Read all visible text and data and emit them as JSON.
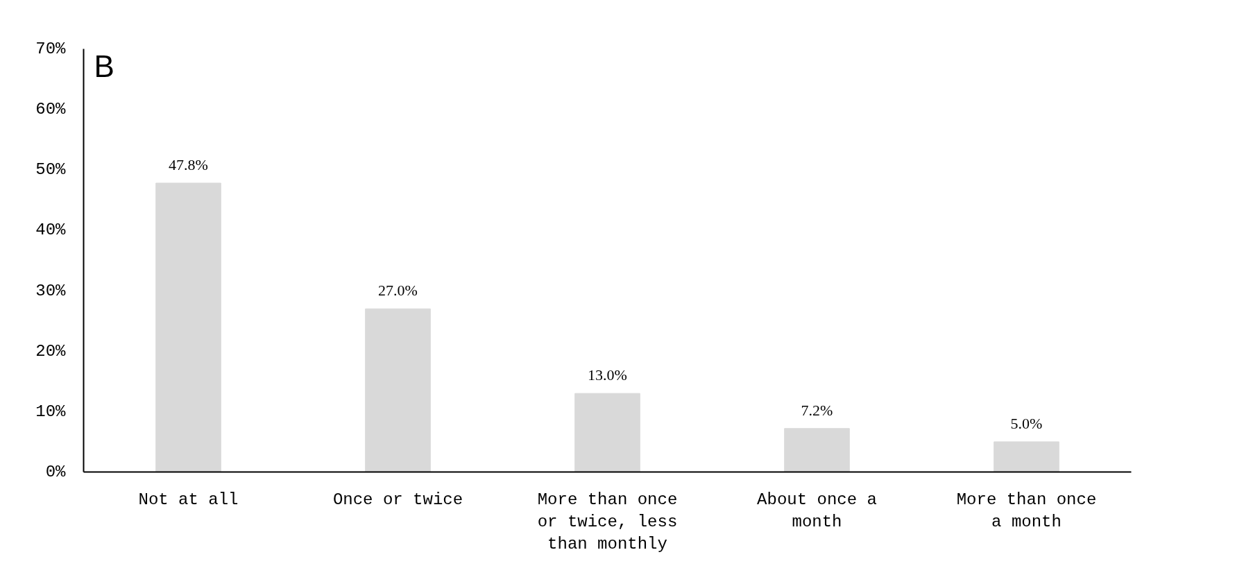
{
  "chart_data": {
    "type": "bar",
    "title": "B",
    "categories": [
      "Not at all",
      "Once or twice",
      "More than once or twice, less than monthly",
      "About once a month",
      "More than once a month"
    ],
    "values": [
      47.8,
      27.0,
      13.0,
      7.2,
      5.0
    ],
    "value_labels": [
      "47.8%",
      "27.0%",
      "13.0%",
      "7.2%",
      "5.0%"
    ],
    "color": "#d9d9d9",
    "ylim": [
      0,
      70
    ],
    "yticks": [
      {
        "value": 0,
        "label": "0%"
      },
      {
        "value": 10,
        "label": "10%"
      },
      {
        "value": 20,
        "label": "20%"
      },
      {
        "value": 30,
        "label": "30%"
      },
      {
        "value": 40,
        "label": "40%"
      },
      {
        "value": 50,
        "label": "50%"
      },
      {
        "value": 60,
        "label": "60%"
      },
      {
        "value": 70,
        "label": "70%"
      }
    ]
  }
}
